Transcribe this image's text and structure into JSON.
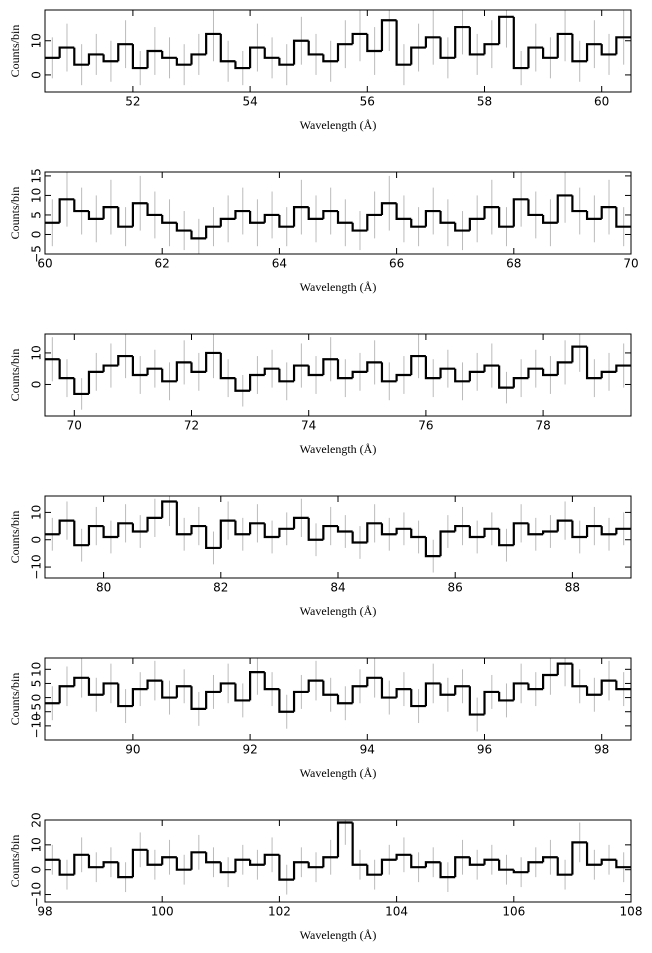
{
  "chart_data": [
    {
      "type": "histogram",
      "xlabel": "Wavelength (Å)",
      "ylabel": "Counts/bin",
      "color": "#000000",
      "error_color": "#bbbbbb",
      "xlim": [
        50.5,
        60.5
      ],
      "ylim": [
        -5,
        19
      ],
      "xticks": [
        52,
        54,
        56,
        58,
        60
      ],
      "yticks": [
        0,
        10
      ],
      "bins": [
        50.5,
        50.75,
        51,
        51.25,
        51.5,
        51.75,
        52,
        52.25,
        52.5,
        52.75,
        53,
        53.25,
        53.5,
        53.75,
        54,
        54.25,
        54.5,
        54.75,
        55,
        55.25,
        55.5,
        55.75,
        56,
        56.25,
        56.5,
        56.75,
        57,
        57.25,
        57.5,
        57.75,
        58,
        58.25,
        58.5,
        58.75,
        59,
        59.25,
        59.5,
        59.75,
        60,
        60.25,
        60.5
      ],
      "values": [
        5,
        8,
        3,
        6,
        4,
        9,
        2,
        7,
        5,
        3,
        6,
        12,
        4,
        2,
        8,
        5,
        3,
        10,
        6,
        4,
        9,
        12,
        7,
        16,
        3,
        8,
        11,
        5,
        14,
        6,
        9,
        17,
        2,
        8,
        5,
        12,
        4,
        9,
        6,
        11
      ],
      "errors": [
        6,
        7,
        6,
        6,
        6,
        7,
        5,
        7,
        6,
        6,
        6,
        8,
        6,
        5,
        7,
        6,
        6,
        7,
        6,
        6,
        7,
        8,
        7,
        9,
        6,
        7,
        8,
        6,
        8,
        6,
        7,
        9,
        5,
        7,
        6,
        8,
        6,
        7,
        6,
        8
      ]
    },
    {
      "type": "histogram",
      "xlabel": "Wavelength (Å)",
      "ylabel": "Counts/bin",
      "color": "#000000",
      "error_color": "#bbbbbb",
      "xlim": [
        60,
        70
      ],
      "ylim": [
        -5,
        16
      ],
      "xticks": [
        60,
        62,
        64,
        66,
        68,
        70
      ],
      "yticks": [
        {
          "value": -5,
          "label": "−5"
        },
        0,
        5,
        10,
        15
      ],
      "bins": [
        60,
        60.25,
        60.5,
        60.75,
        61,
        61.25,
        61.5,
        61.75,
        62,
        62.25,
        62.5,
        62.75,
        63,
        63.25,
        63.5,
        63.75,
        64,
        64.25,
        64.5,
        64.75,
        65,
        65.25,
        65.5,
        65.75,
        66,
        66.25,
        66.5,
        66.75,
        67,
        67.25,
        67.5,
        67.75,
        68,
        68.25,
        68.5,
        68.75,
        69,
        69.25,
        69.5,
        69.75,
        70
      ],
      "values": [
        3,
        9,
        6,
        4,
        7,
        2,
        8,
        5,
        3,
        1,
        -1,
        2,
        4,
        6,
        3,
        5,
        2,
        7,
        4,
        6,
        3,
        1,
        5,
        8,
        4,
        2,
        6,
        3,
        1,
        4,
        7,
        2,
        9,
        5,
        3,
        10,
        6,
        4,
        7,
        2
      ],
      "errors": [
        6,
        7,
        6,
        6,
        7,
        5,
        7,
        6,
        6,
        5,
        5,
        5,
        6,
        6,
        6,
        6,
        5,
        7,
        6,
        6,
        6,
        5,
        6,
        7,
        6,
        5,
        6,
        6,
        5,
        6,
        7,
        5,
        7,
        6,
        6,
        7,
        6,
        6,
        7,
        5
      ]
    },
    {
      "type": "histogram",
      "xlabel": "Wavelength (Å)",
      "ylabel": "Counts/bin",
      "color": "#000000",
      "error_color": "#bbbbbb",
      "xlim": [
        69.5,
        79.5
      ],
      "ylim": [
        -10,
        16
      ],
      "xticks": [
        70,
        72,
        74,
        76,
        78
      ],
      "yticks": [
        0,
        10
      ],
      "bins": [
        69.5,
        69.75,
        70,
        70.25,
        70.5,
        70.75,
        71,
        71.25,
        71.5,
        71.75,
        72,
        72.25,
        72.5,
        72.75,
        73,
        73.25,
        73.5,
        73.75,
        74,
        74.25,
        74.5,
        74.75,
        75,
        75.25,
        75.5,
        75.75,
        76,
        76.25,
        76.5,
        76.75,
        77,
        77.25,
        77.5,
        77.75,
        78,
        78.25,
        78.5,
        78.75,
        79,
        79.25,
        79.5
      ],
      "values": [
        8,
        2,
        -3,
        4,
        6,
        9,
        3,
        5,
        1,
        7,
        4,
        10,
        2,
        -2,
        3,
        5,
        1,
        6,
        3,
        8,
        2,
        4,
        7,
        1,
        3,
        9,
        2,
        5,
        1,
        4,
        6,
        -1,
        2,
        5,
        3,
        7,
        12,
        2,
        4,
        6
      ],
      "errors": [
        7,
        6,
        5,
        6,
        7,
        7,
        6,
        6,
        6,
        7,
        6,
        8,
        6,
        5,
        6,
        6,
        6,
        7,
        6,
        7,
        6,
        6,
        7,
        6,
        6,
        7,
        6,
        6,
        6,
        6,
        7,
        5,
        6,
        6,
        6,
        7,
        8,
        6,
        6,
        7
      ]
    },
    {
      "type": "histogram",
      "xlabel": "Wavelength (Å)",
      "ylabel": "Counts/bin",
      "color": "#000000",
      "error_color": "#bbbbbb",
      "xlim": [
        79,
        89
      ],
      "ylim": [
        -14,
        16
      ],
      "xticks": [
        80,
        82,
        84,
        86,
        88
      ],
      "yticks": [
        {
          "value": -10,
          "label": "−10"
        },
        0,
        10
      ],
      "bins": [
        79,
        79.25,
        79.5,
        79.75,
        80,
        80.25,
        80.5,
        80.75,
        81,
        81.25,
        81.5,
        81.75,
        82,
        82.25,
        82.5,
        82.75,
        83,
        83.25,
        83.5,
        83.75,
        84,
        84.25,
        84.5,
        84.75,
        85,
        85.25,
        85.5,
        85.75,
        86,
        86.25,
        86.5,
        86.75,
        87,
        87.25,
        87.5,
        87.75,
        88,
        88.25,
        88.5,
        88.75,
        89
      ],
      "values": [
        2,
        7,
        -2,
        5,
        1,
        6,
        3,
        8,
        14,
        2,
        5,
        -3,
        7,
        2,
        6,
        1,
        4,
        8,
        0,
        5,
        3,
        -1,
        6,
        2,
        4,
        1,
        -6,
        3,
        5,
        1,
        4,
        -2,
        6,
        2,
        3,
        7,
        1,
        5,
        2,
        4
      ],
      "errors": [
        6,
        7,
        6,
        7,
        6,
        7,
        6,
        7,
        9,
        6,
        7,
        6,
        7,
        6,
        7,
        6,
        6,
        7,
        6,
        7,
        6,
        6,
        7,
        6,
        6,
        6,
        6,
        6,
        7,
        6,
        6,
        6,
        7,
        6,
        6,
        7,
        6,
        7,
        6,
        6
      ]
    },
    {
      "type": "histogram",
      "xlabel": "Wavelength (Å)",
      "ylabel": "Counts/bin",
      "color": "#000000",
      "error_color": "#bbbbbb",
      "xlim": [
        88.5,
        98.5
      ],
      "ylim": [
        -15,
        14
      ],
      "xticks": [
        90,
        92,
        94,
        96,
        98
      ],
      "yticks": [
        {
          "value": -10,
          "label": "−10"
        },
        {
          "value": -5,
          "label": "−5"
        },
        0,
        5,
        10
      ],
      "bins": [
        88.5,
        88.75,
        89,
        89.25,
        89.5,
        89.75,
        90,
        90.25,
        90.5,
        90.75,
        91,
        91.25,
        91.5,
        91.75,
        92,
        92.25,
        92.5,
        92.75,
        93,
        93.25,
        93.5,
        93.75,
        94,
        94.25,
        94.5,
        94.75,
        95,
        95.25,
        95.5,
        95.75,
        96,
        96.25,
        96.5,
        96.75,
        97,
        97.25,
        97.5,
        97.75,
        98,
        98.25,
        98.5
      ],
      "values": [
        -2,
        4,
        7,
        1,
        5,
        -3,
        3,
        6,
        0,
        4,
        -4,
        2,
        5,
        -1,
        9,
        3,
        -5,
        2,
        6,
        1,
        -2,
        4,
        7,
        0,
        3,
        -3,
        5,
        1,
        4,
        -6,
        2,
        -1,
        5,
        3,
        8,
        12,
        4,
        1,
        6,
        3
      ],
      "errors": [
        6,
        7,
        7,
        6,
        7,
        6,
        6,
        7,
        6,
        6,
        6,
        6,
        7,
        6,
        8,
        6,
        6,
        6,
        7,
        6,
        6,
        6,
        7,
        6,
        6,
        6,
        7,
        6,
        6,
        6,
        6,
        6,
        7,
        6,
        7,
        8,
        6,
        6,
        7,
        6
      ]
    },
    {
      "type": "histogram",
      "xlabel": "Wavelength (Å)",
      "ylabel": "Counts/bin",
      "color": "#000000",
      "error_color": "#bbbbbb",
      "xlim": [
        98,
        108
      ],
      "ylim": [
        -13,
        20
      ],
      "xticks": [
        98,
        100,
        102,
        104,
        106,
        108
      ],
      "yticks": [
        {
          "value": -10,
          "label": "−10"
        },
        0,
        10,
        20
      ],
      "bins": [
        98,
        98.25,
        98.5,
        98.75,
        99,
        99.25,
        99.5,
        99.75,
        100,
        100.25,
        100.5,
        100.75,
        101,
        101.25,
        101.5,
        101.75,
        102,
        102.25,
        102.5,
        102.75,
        103,
        103.25,
        103.5,
        103.75,
        104,
        104.25,
        104.5,
        104.75,
        105,
        105.25,
        105.5,
        105.75,
        106,
        106.25,
        106.5,
        106.75,
        107,
        107.25,
        107.5,
        107.75,
        108
      ],
      "values": [
        4,
        -2,
        6,
        1,
        3,
        -3,
        8,
        2,
        5,
        0,
        7,
        3,
        -1,
        4,
        2,
        6,
        -4,
        3,
        1,
        5,
        19,
        2,
        -2,
        4,
        6,
        1,
        3,
        -3,
        5,
        2,
        4,
        0,
        -1,
        3,
        5,
        -2,
        11,
        2,
        4,
        1
      ],
      "errors": [
        6,
        6,
        7,
        6,
        6,
        6,
        7,
        6,
        7,
        6,
        7,
        6,
        6,
        6,
        6,
        7,
        6,
        6,
        6,
        7,
        9,
        6,
        6,
        6,
        7,
        6,
        6,
        6,
        7,
        6,
        6,
        6,
        6,
        6,
        7,
        6,
        8,
        6,
        6,
        6
      ]
    }
  ]
}
